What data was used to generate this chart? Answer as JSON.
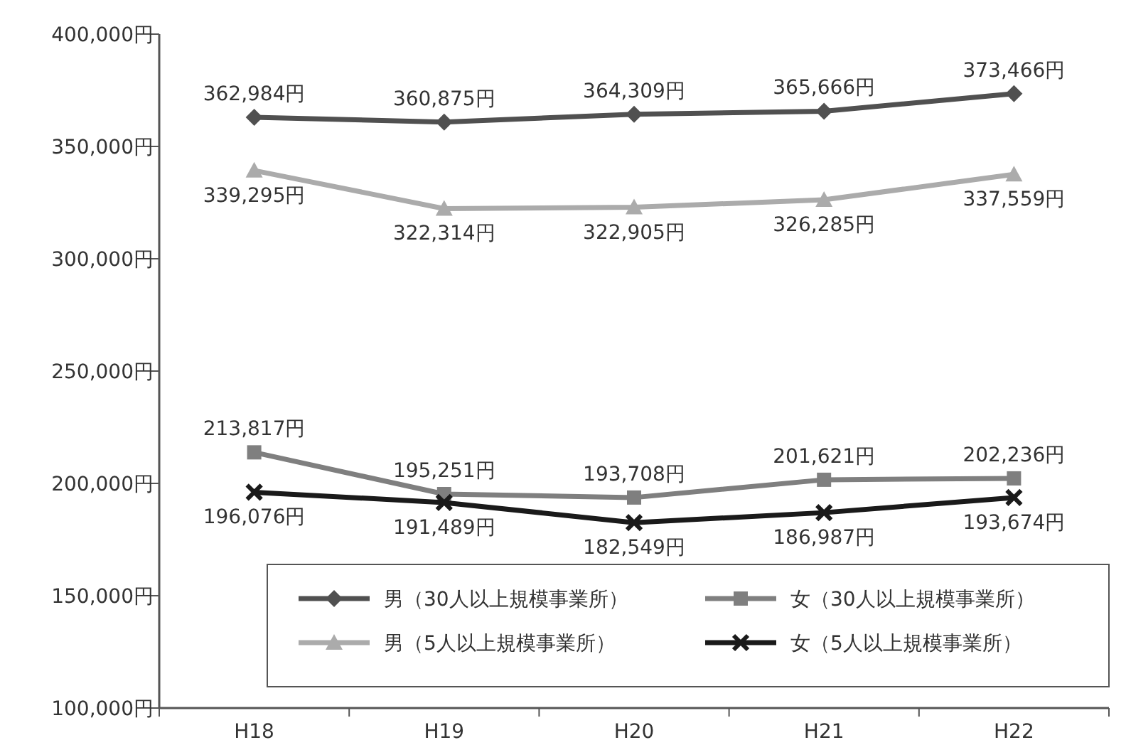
{
  "chart_data": {
    "type": "line",
    "categories": [
      "H18",
      "H19",
      "H20",
      "H21",
      "H22"
    ],
    "ylim": [
      100000,
      400000
    ],
    "yticks": [
      {
        "value": 100000,
        "label": "100,000円"
      },
      {
        "value": 150000,
        "label": "150,000円"
      },
      {
        "value": 200000,
        "label": "200,000円"
      },
      {
        "value": 250000,
        "label": "250,000円"
      },
      {
        "value": 300000,
        "label": "300,000円"
      },
      {
        "value": 350000,
        "label": "350,000円"
      },
      {
        "value": 400000,
        "label": "400,000円"
      }
    ],
    "grid": false,
    "legend": "bottom right",
    "line_style": "solid",
    "series": [
      {
        "name": "男（30人以上規模事業所）",
        "color": "#505050",
        "marker": "diamond",
        "values": [
          362984,
          360875,
          364309,
          365666,
          373466
        ],
        "value_labels": [
          "362,984円",
          "360,875円",
          "364,309円",
          "365,666円",
          "373,466円"
        ]
      },
      {
        "name": "男（5人以上規模事業所）",
        "color": "#ababab",
        "marker": "triangle",
        "values": [
          339295,
          322314,
          322905,
          326285,
          337559
        ],
        "value_labels": [
          "339,295円",
          "322,314円",
          "322,905円",
          "326,285円",
          "337,559円"
        ]
      },
      {
        "name": "女（30人以上規模事業所）",
        "color": "#7f7f7f",
        "marker": "square",
        "values": [
          213817,
          195251,
          193708,
          201621,
          202236
        ],
        "value_labels": [
          "213,817円",
          "195,251円",
          "193,708円",
          "201,621円",
          "202,236円"
        ]
      },
      {
        "name": "女（5人以上規模事業所）",
        "color": "#1a1a1a",
        "marker": "cross",
        "values": [
          196076,
          191489,
          182549,
          186987,
          193674
        ],
        "value_labels": [
          "196,076円",
          "191,489円",
          "182,549円",
          "186,987円",
          "193,674円"
        ]
      }
    ]
  }
}
